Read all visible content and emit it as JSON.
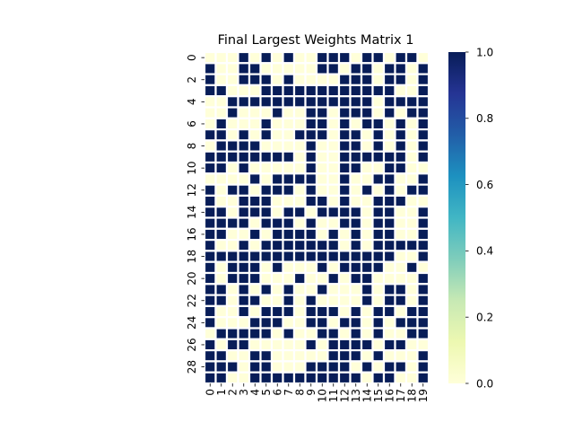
{
  "chart_data": {
    "type": "heatmap",
    "title": "Final Largest Weights Matrix 1",
    "xlabel": "",
    "ylabel": "",
    "x_ticks": [
      "0",
      "1",
      "2",
      "3",
      "4",
      "5",
      "6",
      "7",
      "8",
      "9",
      "10",
      "11",
      "12",
      "13",
      "14",
      "15",
      "16",
      "17",
      "18",
      "19"
    ],
    "y_ticks": [
      "0",
      "2",
      "4",
      "6",
      "8",
      "10",
      "12",
      "14",
      "16",
      "18",
      "20",
      "22",
      "24",
      "26",
      "28"
    ],
    "rows": 30,
    "cols": 20,
    "values": [
      [
        0,
        0,
        0,
        1,
        0,
        1,
        0,
        1,
        0,
        0,
        1,
        1,
        1,
        0,
        1,
        1,
        0,
        1,
        1,
        0
      ],
      [
        1,
        0,
        0,
        1,
        1,
        0,
        0,
        0,
        0,
        0,
        1,
        1,
        0,
        1,
        1,
        0,
        1,
        1,
        0,
        1
      ],
      [
        1,
        0,
        0,
        1,
        1,
        1,
        0,
        1,
        0,
        0,
        0,
        0,
        1,
        1,
        1,
        0,
        1,
        1,
        0,
        1
      ],
      [
        1,
        1,
        0,
        0,
        0,
        1,
        1,
        1,
        1,
        1,
        1,
        1,
        1,
        1,
        1,
        1,
        1,
        0,
        0,
        1
      ],
      [
        0,
        0,
        1,
        1,
        1,
        1,
        1,
        1,
        1,
        1,
        1,
        1,
        1,
        1,
        1,
        0,
        1,
        1,
        1,
        1
      ],
      [
        0,
        0,
        1,
        0,
        0,
        0,
        1,
        0,
        0,
        1,
        1,
        0,
        1,
        1,
        1,
        0,
        1,
        0,
        1,
        1
      ],
      [
        0,
        1,
        0,
        0,
        0,
        1,
        0,
        0,
        0,
        1,
        1,
        0,
        1,
        0,
        1,
        1,
        0,
        1,
        0,
        1
      ],
      [
        1,
        1,
        0,
        1,
        0,
        1,
        0,
        0,
        1,
        1,
        1,
        0,
        1,
        1,
        0,
        1,
        0,
        1,
        0,
        1
      ],
      [
        0,
        1,
        1,
        1,
        1,
        0,
        0,
        0,
        0,
        1,
        0,
        0,
        1,
        1,
        0,
        1,
        0,
        1,
        0,
        1
      ],
      [
        1,
        1,
        1,
        1,
        1,
        1,
        1,
        1,
        0,
        1,
        0,
        0,
        1,
        1,
        1,
        1,
        1,
        1,
        0,
        1
      ],
      [
        1,
        1,
        0,
        1,
        0,
        0,
        0,
        0,
        0,
        1,
        0,
        0,
        1,
        1,
        0,
        0,
        1,
        1,
        0,
        0
      ],
      [
        0,
        0,
        0,
        0,
        1,
        0,
        1,
        1,
        1,
        1,
        0,
        0,
        1,
        0,
        0,
        1,
        1,
        0,
        0,
        1
      ],
      [
        1,
        0,
        1,
        1,
        0,
        1,
        1,
        1,
        0,
        1,
        0,
        0,
        1,
        0,
        1,
        0,
        1,
        0,
        1,
        1
      ],
      [
        1,
        0,
        0,
        1,
        1,
        1,
        0,
        0,
        0,
        1,
        1,
        0,
        1,
        0,
        0,
        1,
        1,
        1,
        0,
        0
      ],
      [
        1,
        1,
        0,
        1,
        1,
        1,
        0,
        1,
        1,
        0,
        1,
        1,
        1,
        1,
        0,
        1,
        1,
        0,
        0,
        1
      ],
      [
        1,
        1,
        1,
        1,
        0,
        1,
        1,
        1,
        0,
        1,
        0,
        0,
        1,
        1,
        0,
        1,
        1,
        0,
        0,
        1
      ],
      [
        1,
        1,
        0,
        0,
        1,
        0,
        1,
        1,
        1,
        1,
        0,
        1,
        0,
        1,
        0,
        1,
        1,
        0,
        0,
        1
      ],
      [
        1,
        0,
        0,
        1,
        0,
        1,
        1,
        1,
        1,
        1,
        1,
        1,
        0,
        1,
        0,
        1,
        1,
        1,
        1,
        1
      ],
      [
        1,
        1,
        1,
        1,
        1,
        1,
        1,
        1,
        1,
        1,
        1,
        1,
        1,
        1,
        1,
        1,
        1,
        0,
        0,
        1
      ],
      [
        1,
        0,
        1,
        1,
        1,
        0,
        1,
        0,
        0,
        0,
        1,
        0,
        1,
        1,
        1,
        1,
        0,
        0,
        1,
        0
      ],
      [
        1,
        0,
        1,
        1,
        1,
        0,
        0,
        0,
        1,
        0,
        0,
        1,
        0,
        1,
        1,
        0,
        0,
        0,
        0,
        1
      ],
      [
        1,
        1,
        0,
        1,
        0,
        1,
        0,
        1,
        0,
        0,
        1,
        0,
        0,
        0,
        1,
        0,
        1,
        1,
        0,
        1
      ],
      [
        1,
        1,
        0,
        1,
        1,
        0,
        0,
        1,
        0,
        1,
        0,
        0,
        0,
        0,
        1,
        0,
        1,
        1,
        0,
        1
      ],
      [
        1,
        0,
        0,
        1,
        0,
        1,
        1,
        1,
        0,
        1,
        1,
        1,
        0,
        1,
        0,
        1,
        1,
        0,
        1,
        1
      ],
      [
        1,
        0,
        0,
        0,
        1,
        1,
        1,
        0,
        0,
        1,
        1,
        0,
        1,
        1,
        0,
        1,
        0,
        1,
        1,
        1
      ],
      [
        0,
        1,
        1,
        1,
        1,
        1,
        0,
        1,
        0,
        0,
        1,
        1,
        0,
        1,
        0,
        1,
        0,
        0,
        1,
        1
      ],
      [
        1,
        0,
        1,
        1,
        0,
        0,
        0,
        0,
        0,
        1,
        0,
        1,
        1,
        1,
        1,
        0,
        1,
        1,
        0,
        0
      ],
      [
        1,
        1,
        0,
        0,
        1,
        1,
        0,
        0,
        0,
        0,
        0,
        1,
        1,
        1,
        0,
        1,
        0,
        0,
        0,
        1
      ],
      [
        1,
        1,
        1,
        0,
        1,
        1,
        0,
        0,
        0,
        1,
        1,
        1,
        1,
        0,
        1,
        0,
        1,
        1,
        0,
        1
      ],
      [
        1,
        1,
        0,
        0,
        1,
        1,
        1,
        1,
        1,
        1,
        1,
        1,
        1,
        1,
        0,
        1,
        1,
        0,
        0,
        1
      ]
    ],
    "vmin": 0.0,
    "vmax": 1.0,
    "colormap": "YlGnBu",
    "colormap_stops": [
      "#ffffd9",
      "#edf8b1",
      "#c7e9b4",
      "#7fcdbb",
      "#41b6c4",
      "#1d91c0",
      "#225ea8",
      "#253494",
      "#081d58"
    ],
    "low_color": "#ffffd9",
    "high_color": "#081d58",
    "cell_gap_color": "#ffffff",
    "colorbar": {
      "ticks": [
        "0.0",
        "0.2",
        "0.4",
        "0.6",
        "0.8",
        "1.0"
      ],
      "tick_values": [
        0.0,
        0.2,
        0.4,
        0.6,
        0.8,
        1.0
      ],
      "placement": "right"
    }
  }
}
